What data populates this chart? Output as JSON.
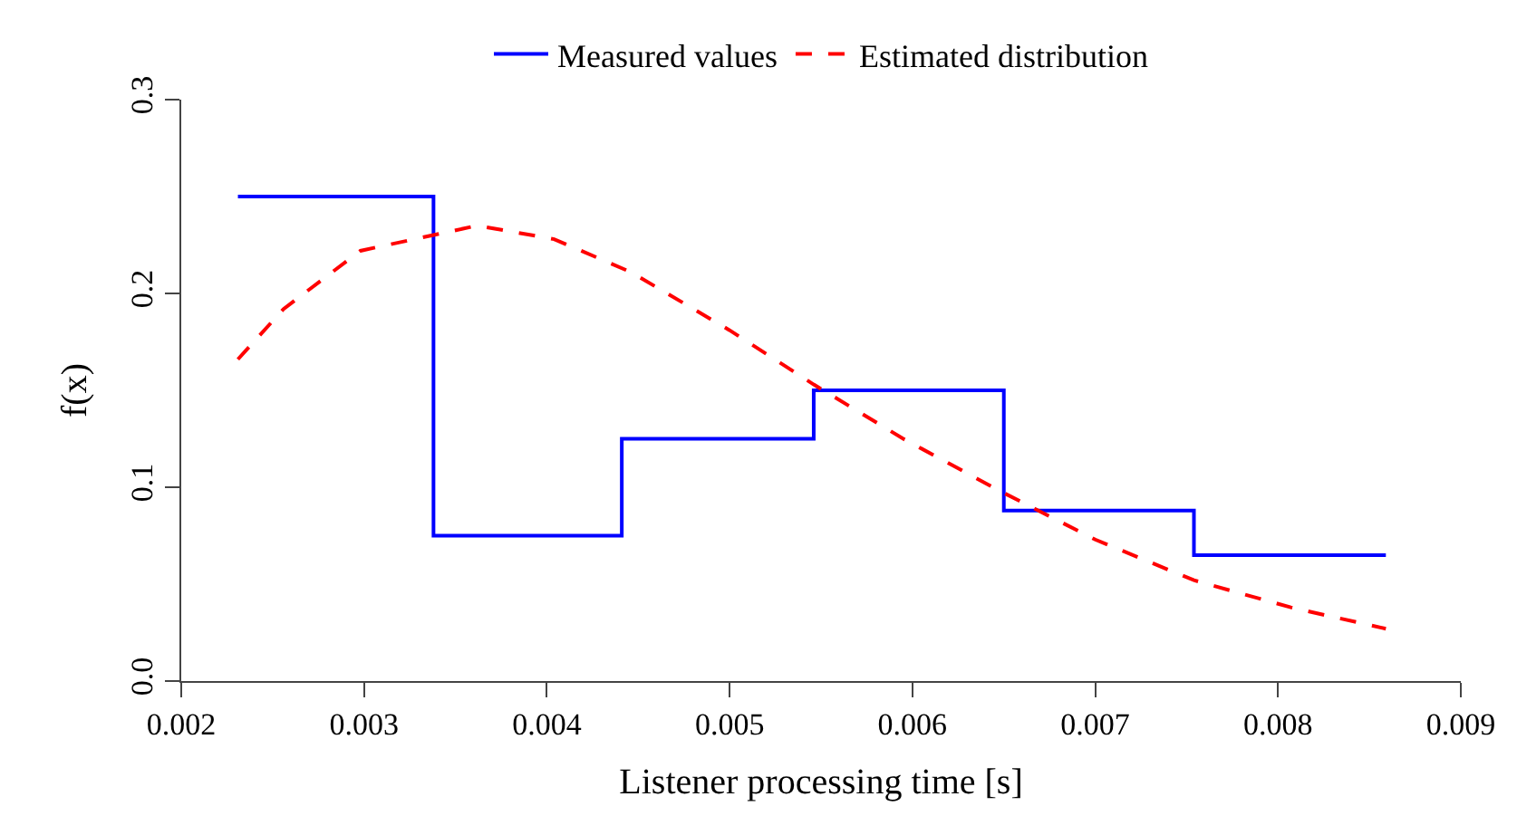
{
  "chart_data": {
    "type": "step",
    "xlabel": "Listener processing time [s]",
    "ylabel": "f(x)",
    "xlim": [
      0.002,
      0.009
    ],
    "ylim": [
      0.0,
      0.3
    ],
    "xticks": [
      0.002,
      0.003,
      0.004,
      0.005,
      0.006,
      0.007,
      0.008,
      0.009
    ],
    "yticks": [
      {
        "value": 0,
        "label": "0.0"
      },
      0.1,
      0.2,
      0.3
    ],
    "legend": "top",
    "marker": "none",
    "series": [
      {
        "name": "Measured values",
        "type": "step",
        "color": "#0000ff",
        "line_style": "solid",
        "x": [
          0.00231,
          0.00338,
          0.00441,
          0.00546,
          0.0065,
          0.00754,
          0.00859
        ],
        "values": [
          0.25,
          0.075,
          0.125,
          0.15,
          0.088,
          0.065,
          0.065
        ]
      },
      {
        "name": "Estimated distribution",
        "type": "line",
        "color": "#ff0000",
        "line_style": "dashed",
        "x": [
          0.00231,
          0.00256,
          0.00298,
          0.00362,
          0.00404,
          0.00446,
          0.005,
          0.00546,
          0.00595,
          0.00648,
          0.007,
          0.00754,
          0.00807,
          0.00859
        ],
        "values": [
          0.166,
          0.192,
          0.222,
          0.235,
          0.228,
          0.211,
          0.181,
          0.153,
          0.125,
          0.098,
          0.073,
          0.052,
          0.038,
          0.027
        ]
      }
    ]
  }
}
